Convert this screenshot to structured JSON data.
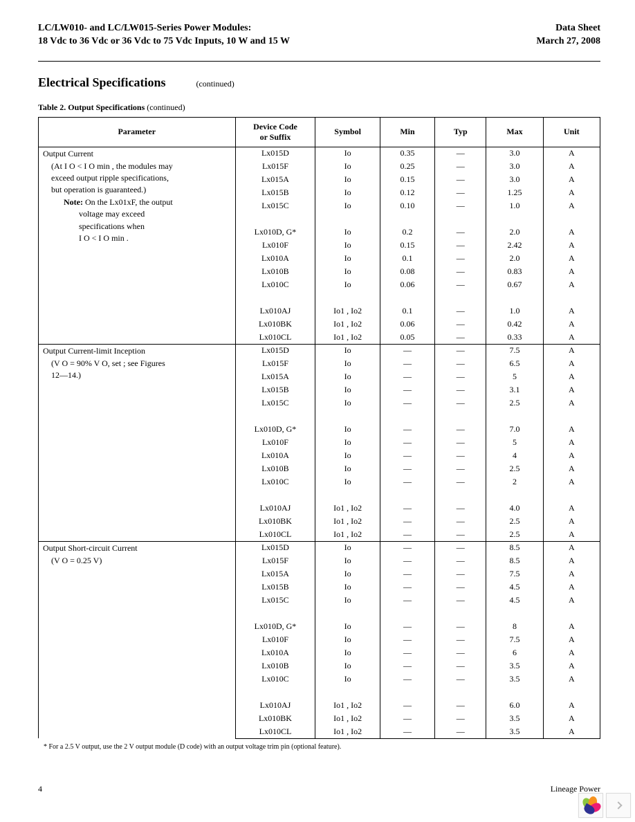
{
  "header": {
    "title_line1": "LC/LW010- and LC/LW015-Series Power Modules:",
    "title_line2": "18 Vdc to 36 Vdc or 36 Vdc to 75 Vdc Inputs, 10 W and 15 W",
    "doc_type": "Data Sheet",
    "date": "March 27, 2008"
  },
  "section": {
    "title": "Electrical Specifications",
    "continued": "(continued)"
  },
  "table_caption": {
    "bold": "Table 2. Output Specifications",
    "tail": " (continued)"
  },
  "columns": {
    "parameter": "Parameter",
    "device": "Device Code\nor Suffix",
    "symbol": "Symbol",
    "min": "Min",
    "typ": "Typ",
    "max": "Max",
    "unit": "Unit"
  },
  "col_widths": [
    "280",
    "114",
    "92",
    "78",
    "73",
    "81",
    "81"
  ],
  "groups": [
    {
      "param_lines": [
        "Output Current",
        "  (At I O < I O min , the modules may",
        "  exceed output ripple specifications,",
        "  but operation is guaranteed.)",
        "    Note: On the Lx01xF, the output",
        "          voltage may exceed",
        "          specifications when",
        "          I O < I O min ."
      ],
      "rows": [
        {
          "device": "Lx015D",
          "symbol": "Io",
          "min": "0.35",
          "typ": "—",
          "max": "3.0",
          "unit": "A"
        },
        {
          "device": "Lx015F",
          "symbol": "Io",
          "min": "0.25",
          "typ": "—",
          "max": "3.0",
          "unit": "A"
        },
        {
          "device": "Lx015A",
          "symbol": "Io",
          "min": "0.15",
          "typ": "—",
          "max": "3.0",
          "unit": "A"
        },
        {
          "device": "Lx015B",
          "symbol": "Io",
          "min": "0.12",
          "typ": "—",
          "max": "1.25",
          "unit": "A"
        },
        {
          "device": "Lx015C",
          "symbol": "Io",
          "min": "0.10",
          "typ": "—",
          "max": "1.0",
          "unit": "A"
        },
        {
          "device": "",
          "symbol": "",
          "min": "",
          "typ": "",
          "max": "",
          "unit": ""
        },
        {
          "device": "Lx010D, G*",
          "symbol": "Io",
          "min": "0.2",
          "typ": "—",
          "max": "2.0",
          "unit": "A"
        },
        {
          "device": "Lx010F",
          "symbol": "Io",
          "min": "0.15",
          "typ": "—",
          "max": "2.42",
          "unit": "A"
        },
        {
          "device": "Lx010A",
          "symbol": "Io",
          "min": "0.1",
          "typ": "—",
          "max": "2.0",
          "unit": "A"
        },
        {
          "device": "Lx010B",
          "symbol": "Io",
          "min": "0.08",
          "typ": "—",
          "max": "0.83",
          "unit": "A"
        },
        {
          "device": "Lx010C",
          "symbol": "Io",
          "min": "0.06",
          "typ": "—",
          "max": "0.67",
          "unit": "A"
        },
        {
          "device": "",
          "symbol": "",
          "min": "",
          "typ": "",
          "max": "",
          "unit": ""
        },
        {
          "device": "Lx010AJ",
          "symbol": "Io1 , Io2",
          "min": "0.1",
          "typ": "—",
          "max": "1.0",
          "unit": "A"
        },
        {
          "device": "Lx010BK",
          "symbol": "Io1 , Io2",
          "min": "0.06",
          "typ": "—",
          "max": "0.42",
          "unit": "A"
        },
        {
          "device": "Lx010CL",
          "symbol": "Io1 , Io2",
          "min": "0.05",
          "typ": "—",
          "max": "0.33",
          "unit": "A"
        }
      ]
    },
    {
      "param_lines": [
        "Output Current-limit Inception",
        "  (V O = 90% V O, set ; see Figures",
        "   12—14.)"
      ],
      "rows": [
        {
          "device": "Lx015D",
          "symbol": "Io",
          "min": "—",
          "typ": "—",
          "max": "7.5",
          "unit": "A"
        },
        {
          "device": "Lx015F",
          "symbol": "Io",
          "min": "—",
          "typ": "—",
          "max": "6.5",
          "unit": "A"
        },
        {
          "device": "Lx015A",
          "symbol": "Io",
          "min": "—",
          "typ": "—",
          "max": "5",
          "unit": "A"
        },
        {
          "device": "Lx015B",
          "symbol": "Io",
          "min": "—",
          "typ": "—",
          "max": "3.1",
          "unit": "A"
        },
        {
          "device": "Lx015C",
          "symbol": "Io",
          "min": "—",
          "typ": "—",
          "max": "2.5",
          "unit": "A"
        },
        {
          "device": "",
          "symbol": "",
          "min": "",
          "typ": "",
          "max": "",
          "unit": ""
        },
        {
          "device": "Lx010D, G*",
          "symbol": "Io",
          "min": "—",
          "typ": "—",
          "max": "7.0",
          "unit": "A"
        },
        {
          "device": "Lx010F",
          "symbol": "Io",
          "min": "—",
          "typ": "—",
          "max": "5",
          "unit": "A"
        },
        {
          "device": "Lx010A",
          "symbol": "Io",
          "min": "—",
          "typ": "—",
          "max": "4",
          "unit": "A"
        },
        {
          "device": "Lx010B",
          "symbol": "Io",
          "min": "—",
          "typ": "—",
          "max": "2.5",
          "unit": "A"
        },
        {
          "device": "Lx010C",
          "symbol": "Io",
          "min": "—",
          "typ": "—",
          "max": "2",
          "unit": "A"
        },
        {
          "device": "",
          "symbol": "",
          "min": "",
          "typ": "",
          "max": "",
          "unit": ""
        },
        {
          "device": "Lx010AJ",
          "symbol": "Io1 , Io2",
          "min": "—",
          "typ": "—",
          "max": "4.0",
          "unit": "A"
        },
        {
          "device": "Lx010BK",
          "symbol": "Io1 , Io2",
          "min": "—",
          "typ": "—",
          "max": "2.5",
          "unit": "A"
        },
        {
          "device": "Lx010CL",
          "symbol": "Io1 , Io2",
          "min": "—",
          "typ": "—",
          "max": "2.5",
          "unit": "A"
        }
      ]
    },
    {
      "param_lines": [
        "Output Short-circuit Current",
        "  (V O = 0.25 V)"
      ],
      "rows": [
        {
          "device": "Lx015D",
          "symbol": "Io",
          "min": "—",
          "typ": "—",
          "max": "8.5",
          "unit": "A"
        },
        {
          "device": "Lx015F",
          "symbol": "Io",
          "min": "—",
          "typ": "—",
          "max": "8.5",
          "unit": "A"
        },
        {
          "device": "Lx015A",
          "symbol": "Io",
          "min": "—",
          "typ": "—",
          "max": "7.5",
          "unit": "A"
        },
        {
          "device": "Lx015B",
          "symbol": "Io",
          "min": "—",
          "typ": "—",
          "max": "4.5",
          "unit": "A"
        },
        {
          "device": "Lx015C",
          "symbol": "Io",
          "min": "—",
          "typ": "—",
          "max": "4.5",
          "unit": "A"
        },
        {
          "device": "",
          "symbol": "",
          "min": "",
          "typ": "",
          "max": "",
          "unit": ""
        },
        {
          "device": "Lx010D, G*",
          "symbol": "Io",
          "min": "—",
          "typ": "—",
          "max": "8",
          "unit": "A"
        },
        {
          "device": "Lx010F",
          "symbol": "Io",
          "min": "—",
          "typ": "—",
          "max": "7.5",
          "unit": "A"
        },
        {
          "device": "Lx010A",
          "symbol": "Io",
          "min": "—",
          "typ": "—",
          "max": "6",
          "unit": "A"
        },
        {
          "device": "Lx010B",
          "symbol": "Io",
          "min": "—",
          "typ": "—",
          "max": "3.5",
          "unit": "A"
        },
        {
          "device": "Lx010C",
          "symbol": "Io",
          "min": "—",
          "typ": "—",
          "max": "3.5",
          "unit": "A"
        },
        {
          "device": "",
          "symbol": "",
          "min": "",
          "typ": "",
          "max": "",
          "unit": ""
        },
        {
          "device": "Lx010AJ",
          "symbol": "Io1 , Io2",
          "min": "—",
          "typ": "—",
          "max": "6.0",
          "unit": "A"
        },
        {
          "device": "Lx010BK",
          "symbol": "Io1 , Io2",
          "min": "—",
          "typ": "—",
          "max": "3.5",
          "unit": "A"
        },
        {
          "device": "Lx010CL",
          "symbol": "Io1 , Io2",
          "min": "—",
          "typ": "—",
          "max": "3.5",
          "unit": "A"
        }
      ]
    }
  ],
  "footnote": "* For a 2.5 V output, use the 2 V output module (D code) with an output voltage trim pin (optional feature).",
  "footer": {
    "page_number": "4",
    "company": "Lineage Power"
  },
  "logo_colors": [
    "#8cc63f",
    "#f7931e",
    "#ec1c74",
    "#2e3192"
  ]
}
